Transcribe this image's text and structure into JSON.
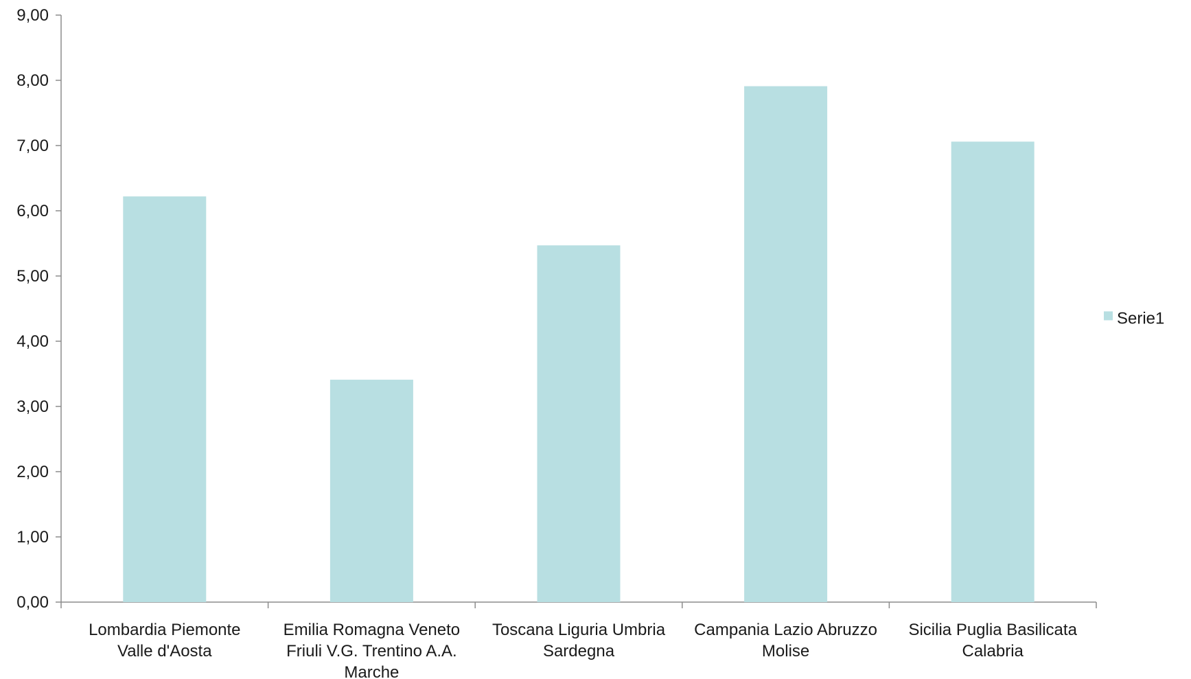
{
  "chart_data": {
    "type": "bar",
    "categories": [
      [
        "Lombardia Piemonte",
        "Valle d'Aosta"
      ],
      [
        "Emilia Romagna Veneto",
        "Friuli V.G.   Trentino A.A.",
        "Marche"
      ],
      [
        "Toscana Liguria Umbria",
        "Sardegna"
      ],
      [
        "Campania Lazio Abruzzo",
        "Molise"
      ],
      [
        "Sicilia Puglia Basilicata",
        "Calabria"
      ]
    ],
    "series": [
      {
        "name": "Serie1",
        "values": [
          6.22,
          3.41,
          5.47,
          7.91,
          7.06
        ],
        "color": "#b8dfe2"
      }
    ],
    "ylim": [
      0,
      9
    ],
    "yticks": [
      "0,00",
      "1,00",
      "2,00",
      "3,00",
      "4,00",
      "5,00",
      "6,00",
      "7,00",
      "8,00",
      "9,00"
    ],
    "grid": false,
    "legend": "right",
    "title": "",
    "xlabel": "",
    "ylabel": ""
  }
}
